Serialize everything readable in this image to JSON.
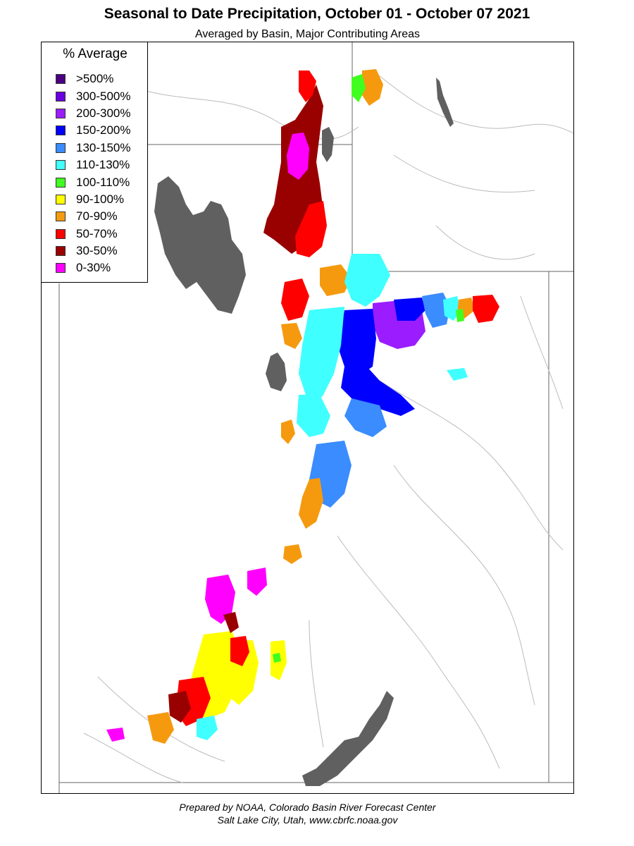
{
  "title": "Seasonal to Date Precipitation, October 01  - October 07 2021",
  "subtitle": "Averaged by Basin, Major Contributing Areas",
  "legend": {
    "title": "% Average",
    "items": [
      {
        "label": ">500%",
        "color": "#4b0082"
      },
      {
        "label": "300-500%",
        "color": "#6a00e0"
      },
      {
        "label": "200-300%",
        "color": "#9b1cff"
      },
      {
        "label": "150-200%",
        "color": "#0000ff"
      },
      {
        "label": "130-150%",
        "color": "#3a8cff"
      },
      {
        "label": "110-130%",
        "color": "#40ffff"
      },
      {
        "label": "100-110%",
        "color": "#40ff20"
      },
      {
        "label": "90-100%",
        "color": "#ffff00"
      },
      {
        "label": "70-90%",
        "color": "#f59a0e"
      },
      {
        "label": "50-70%",
        "color": "#ff0000"
      },
      {
        "label": "30-50%",
        "color": "#990000"
      },
      {
        "label": "0-30%",
        "color": "#ff00ff"
      }
    ]
  },
  "lake_color": "#606060",
  "footer": {
    "line1": "Prepared by NOAA, Colorado Basin River Forecast Center",
    "line2": "Salt Lake City, Utah, www.cbrfc.noaa.gov"
  }
}
